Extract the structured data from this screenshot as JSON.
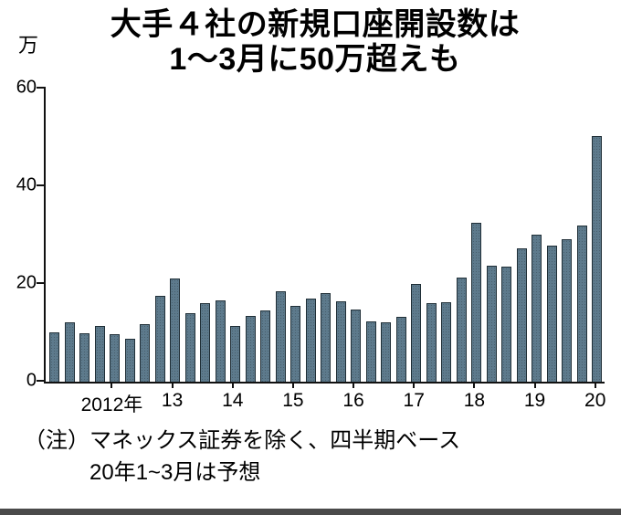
{
  "title": {
    "line1": "大手４社の新規口座開設数は",
    "line2": "1〜3月に50万超えも"
  },
  "y_axis": {
    "unit": "万",
    "ticks": [
      "60",
      "40",
      "20",
      "0"
    ]
  },
  "x_axis": {
    "labels": [
      {
        "text": "2012年",
        "bar_index": 4
      },
      {
        "text": "13",
        "bar_index": 8
      },
      {
        "text": "14",
        "bar_index": 12
      },
      {
        "text": "15",
        "bar_index": 16
      },
      {
        "text": "16",
        "bar_index": 20
      },
      {
        "text": "17",
        "bar_index": 24
      },
      {
        "text": "18",
        "bar_index": 28
      },
      {
        "text": "19",
        "bar_index": 32
      },
      {
        "text": "20",
        "bar_index": 36
      }
    ]
  },
  "notes": {
    "line1": "（注）マネックス証券を除く、四半期ベース",
    "line2": "20年1~3月は予想"
  },
  "colors": {
    "bar_fill": "#5d7a8c",
    "bar_stroke": "#1f2e36",
    "axis": "#111111"
  },
  "chart_data": {
    "type": "bar",
    "title": "大手４社の新規口座開設数は1〜3月に50万超えも",
    "unit": "万",
    "period": "quarterly",
    "ylim": [
      0,
      60
    ],
    "y_ticks": [
      0,
      20,
      40,
      60
    ],
    "x_year_tick_labels": [
      "2012年",
      "13",
      "14",
      "15",
      "16",
      "17",
      "18",
      "19",
      "20"
    ],
    "categories": [
      "2011Q1",
      "2011Q2",
      "2011Q3",
      "2011Q4",
      "2012Q1",
      "2012Q2",
      "2012Q3",
      "2012Q4",
      "2013Q1",
      "2013Q2",
      "2013Q3",
      "2013Q4",
      "2014Q1",
      "2014Q2",
      "2014Q3",
      "2014Q4",
      "2015Q1",
      "2015Q2",
      "2015Q3",
      "2015Q4",
      "2016Q1",
      "2016Q2",
      "2016Q3",
      "2016Q4",
      "2017Q1",
      "2017Q2",
      "2017Q3",
      "2017Q4",
      "2018Q1",
      "2018Q2",
      "2018Q3",
      "2018Q4",
      "2019Q1",
      "2019Q2",
      "2019Q3",
      "2019Q4",
      "2020Q1"
    ],
    "values": [
      10.0,
      12.0,
      9.9,
      11.4,
      9.7,
      8.7,
      11.7,
      17.4,
      21.0,
      13.9,
      16.0,
      16.6,
      11.4,
      13.4,
      14.5,
      18.4,
      15.4,
      16.9,
      18.0,
      16.3,
      14.7,
      12.2,
      12.0,
      13.1,
      19.9,
      15.9,
      16.1,
      21.2,
      32.4,
      23.6,
      23.4,
      27.2,
      30.0,
      27.7,
      28.9,
      31.7,
      50.0
    ],
    "annotations": [
      "20年1~3月は予想 (2020Q1 value is a forecast)"
    ],
    "grid": false,
    "legend": false
  }
}
